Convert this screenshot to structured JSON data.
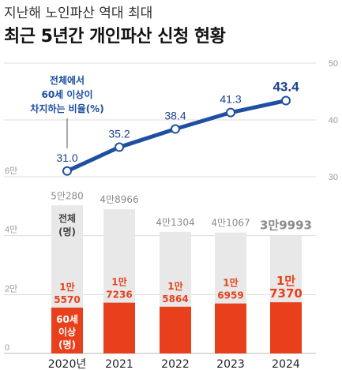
{
  "header": {
    "subtitle": "지난해 노인파산 역대 최대",
    "title": "최근 5년간 개인파산 신청 현황"
  },
  "chart_data": {
    "type": "bar",
    "categories": [
      "2020년",
      "2021",
      "2022",
      "2023",
      "2024"
    ],
    "series": [
      {
        "name": "전체(명)",
        "values": [
          50280,
          48966,
          41304,
          41067,
          39993
        ],
        "labels": [
          "5만280",
          "4만8966",
          "4만1304",
          "4만1067",
          "3만9993"
        ],
        "color": "#e8e8e8"
      },
      {
        "name": "60세 이상(명)",
        "values": [
          15570,
          17236,
          15864,
          16959,
          17370
        ],
        "labels": [
          [
            "1만",
            "5570"
          ],
          [
            "1만",
            "7236"
          ],
          [
            "1만",
            "5864"
          ],
          [
            "1만",
            "6959"
          ],
          [
            "1만",
            "7370"
          ]
        ],
        "color": "#e8401c"
      }
    ],
    "line": {
      "name": "전체에서 60세 이상이 차지하는 비율(%)",
      "values": [
        31.0,
        35.2,
        38.4,
        41.3,
        43.4
      ],
      "labels": [
        "31.0",
        "35.2",
        "38.4",
        "41.3",
        "43.4"
      ],
      "color": "#1f4fa0"
    },
    "left_axis": {
      "ticks": [
        "0",
        "2만",
        "4만",
        "6만"
      ],
      "values": [
        0,
        20000,
        40000,
        60000
      ]
    },
    "right_axis": {
      "ticks": [
        "30",
        "40",
        "50"
      ],
      "values": [
        30,
        40,
        50
      ]
    },
    "inline_labels": {
      "total": [
        "전체",
        "(명)"
      ],
      "senior": [
        "60세",
        "이상",
        "(명)"
      ]
    },
    "annotation": [
      "전체에서",
      "60세 이상이",
      "차지하는 비율(%)"
    ]
  }
}
